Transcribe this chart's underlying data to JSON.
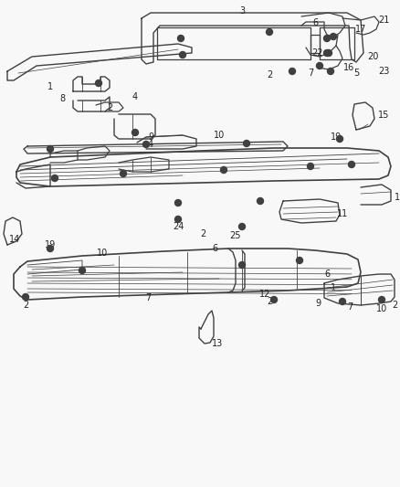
{
  "background_color": "#f8f8f8",
  "line_color": "#404040",
  "fig_width": 4.38,
  "fig_height": 5.33,
  "dpi": 100
}
